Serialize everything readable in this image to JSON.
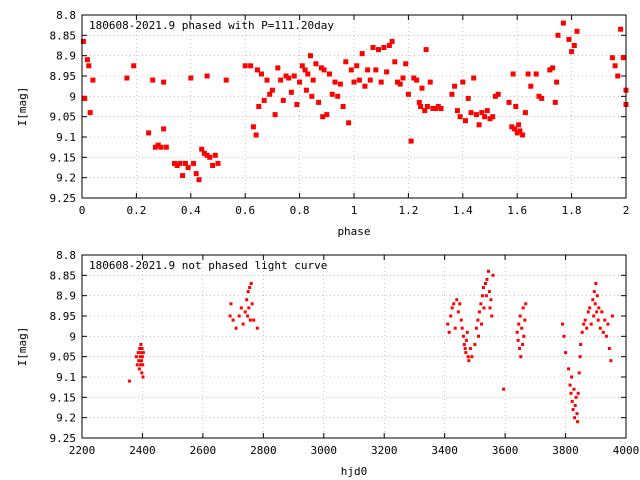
{
  "chart_data": [
    {
      "type": "scatter",
      "title": "180608-2021.9 phased with P=111.20day",
      "xlabel": "phase",
      "ylabel": "I[mag]",
      "xlim": [
        0,
        2
      ],
      "ylim": [
        9.25,
        8.8
      ],
      "y_inverted": true,
      "grid": true,
      "marker_color": "#ff0000",
      "xticks": [
        "0",
        "0.2",
        "0.4",
        "0.6",
        "0.8",
        "1",
        "1.2",
        "1.4",
        "1.6",
        "1.8",
        "2"
      ],
      "yticks": [
        "8.8",
        "8.85",
        "8.9",
        "8.95",
        "9",
        "9.05",
        "9.1",
        "9.15",
        "9.2",
        "9.25"
      ],
      "points": [
        [
          0.005,
          8.865
        ],
        [
          0.01,
          9.005
        ],
        [
          0.02,
          8.91
        ],
        [
          0.025,
          8.925
        ],
        [
          0.03,
          9.04
        ],
        [
          0.04,
          8.96
        ],
        [
          0.165,
          8.955
        ],
        [
          0.19,
          8.925
        ],
        [
          0.245,
          9.09
        ],
        [
          0.26,
          8.96
        ],
        [
          0.27,
          9.125
        ],
        [
          0.28,
          9.12
        ],
        [
          0.29,
          9.125
        ],
        [
          0.3,
          8.965
        ],
        [
          0.3,
          9.08
        ],
        [
          0.31,
          9.125
        ],
        [
          0.34,
          9.165
        ],
        [
          0.35,
          9.17
        ],
        [
          0.36,
          9.165
        ],
        [
          0.37,
          9.195
        ],
        [
          0.38,
          9.165
        ],
        [
          0.39,
          9.175
        ],
        [
          0.4,
          8.955
        ],
        [
          0.41,
          9.165
        ],
        [
          0.42,
          9.19
        ],
        [
          0.43,
          9.205
        ],
        [
          0.44,
          9.13
        ],
        [
          0.45,
          9.14
        ],
        [
          0.46,
          8.95
        ],
        [
          0.46,
          9.145
        ],
        [
          0.47,
          9.15
        ],
        [
          0.48,
          9.17
        ],
        [
          0.49,
          9.145
        ],
        [
          0.5,
          9.165
        ],
        [
          0.53,
          8.96
        ],
        [
          0.6,
          8.925
        ],
        [
          0.62,
          8.925
        ],
        [
          0.63,
          9.075
        ],
        [
          0.64,
          9.095
        ],
        [
          0.645,
          8.935
        ],
        [
          0.65,
          9.025
        ],
        [
          0.66,
          8.945
        ],
        [
          0.67,
          9.01
        ],
        [
          0.68,
          8.96
        ],
        [
          0.69,
          8.995
        ],
        [
          0.7,
          8.985
        ],
        [
          0.71,
          9.045
        ],
        [
          0.72,
          8.93
        ],
        [
          0.73,
          8.96
        ],
        [
          0.74,
          9.01
        ],
        [
          0.75,
          8.95
        ],
        [
          0.76,
          8.955
        ],
        [
          0.77,
          8.99
        ],
        [
          0.78,
          8.95
        ],
        [
          0.79,
          9.02
        ],
        [
          0.8,
          8.965
        ],
        [
          0.81,
          8.925
        ],
        [
          0.82,
          8.935
        ],
        [
          0.825,
          8.985
        ],
        [
          0.83,
          8.945
        ],
        [
          0.84,
          8.9
        ],
        [
          0.845,
          9.0
        ],
        [
          0.85,
          8.96
        ],
        [
          0.86,
          8.92
        ],
        [
          0.87,
          9.015
        ],
        [
          0.88,
          8.93
        ],
        [
          0.885,
          9.05
        ],
        [
          0.89,
          8.935
        ],
        [
          0.9,
          9.045
        ],
        [
          0.91,
          8.945
        ],
        [
          0.92,
          8.995
        ],
        [
          0.93,
          8.965
        ],
        [
          0.94,
          9.0
        ],
        [
          0.95,
          8.97
        ],
        [
          0.96,
          9.025
        ],
        [
          0.97,
          8.915
        ],
        [
          0.98,
          9.065
        ],
        [
          0.99,
          8.935
        ],
        [
          1.0,
          8.965
        ],
        [
          1.01,
          8.925
        ],
        [
          1.02,
          8.96
        ],
        [
          1.03,
          8.895
        ],
        [
          1.04,
          8.975
        ],
        [
          1.05,
          8.935
        ],
        [
          1.06,
          8.96
        ],
        [
          1.07,
          8.88
        ],
        [
          1.08,
          8.935
        ],
        [
          1.09,
          8.885
        ],
        [
          1.1,
          8.965
        ],
        [
          1.11,
          8.88
        ],
        [
          1.12,
          8.94
        ],
        [
          1.13,
          8.875
        ],
        [
          1.14,
          8.865
        ],
        [
          1.15,
          8.915
        ],
        [
          1.16,
          8.965
        ],
        [
          1.17,
          8.97
        ],
        [
          1.18,
          8.955
        ],
        [
          1.19,
          8.92
        ],
        [
          1.2,
          8.995
        ],
        [
          1.21,
          9.11
        ],
        [
          1.22,
          8.955
        ],
        [
          1.23,
          8.96
        ],
        [
          1.24,
          9.015
        ],
        [
          1.245,
          9.025
        ],
        [
          1.25,
          8.98
        ],
        [
          1.26,
          9.035
        ],
        [
          1.265,
          8.885
        ],
        [
          1.27,
          9.025
        ],
        [
          1.28,
          8.965
        ],
        [
          1.29,
          9.03
        ],
        [
          1.3,
          9.03
        ],
        [
          1.31,
          9.025
        ],
        [
          1.32,
          9.03
        ],
        [
          1.36,
          8.995
        ],
        [
          1.37,
          8.975
        ],
        [
          1.38,
          9.035
        ],
        [
          1.39,
          9.05
        ],
        [
          1.4,
          8.965
        ],
        [
          1.41,
          9.06
        ],
        [
          1.42,
          9.005
        ],
        [
          1.43,
          9.04
        ],
        [
          1.44,
          8.955
        ],
        [
          1.45,
          9.045
        ],
        [
          1.46,
          9.07
        ],
        [
          1.47,
          9.04
        ],
        [
          1.48,
          9.05
        ],
        [
          1.49,
          9.035
        ],
        [
          1.5,
          9.055
        ],
        [
          1.51,
          9.05
        ],
        [
          1.52,
          9.0
        ],
        [
          1.53,
          8.995
        ],
        [
          1.57,
          9.015
        ],
        [
          1.58,
          9.075
        ],
        [
          1.585,
          8.945
        ],
        [
          1.59,
          9.08
        ],
        [
          1.595,
          9.025
        ],
        [
          1.6,
          9.09
        ],
        [
          1.605,
          9.07
        ],
        [
          1.61,
          9.085
        ],
        [
          1.62,
          9.095
        ],
        [
          1.63,
          9.04
        ],
        [
          1.64,
          8.945
        ],
        [
          1.65,
          8.975
        ],
        [
          1.67,
          8.945
        ],
        [
          1.68,
          9.0
        ],
        [
          1.69,
          9.005
        ],
        [
          1.72,
          8.935
        ],
        [
          1.73,
          8.93
        ],
        [
          1.74,
          9.015
        ],
        [
          1.745,
          8.965
        ],
        [
          1.75,
          8.85
        ],
        [
          1.77,
          8.82
        ],
        [
          1.79,
          8.86
        ],
        [
          1.8,
          8.89
        ],
        [
          1.81,
          8.875
        ],
        [
          1.82,
          8.84
        ],
        [
          1.95,
          8.905
        ],
        [
          1.96,
          8.925
        ],
        [
          1.97,
          8.95
        ],
        [
          1.98,
          8.835
        ],
        [
          1.99,
          8.905
        ],
        [
          2.0,
          8.985
        ],
        [
          2.0,
          9.02
        ]
      ]
    },
    {
      "type": "scatter",
      "title": "180608-2021.9 not phased light curve",
      "xlabel": "hjd0",
      "ylabel": "I[mag]",
      "xlim": [
        2200,
        4000
      ],
      "ylim": [
        9.25,
        8.8
      ],
      "y_inverted": true,
      "grid": true,
      "marker_color": "#ff0000",
      "xticks": [
        "2200",
        "2400",
        "2600",
        "2800",
        "3000",
        "3200",
        "3400",
        "3600",
        "3800",
        "4000"
      ],
      "yticks": [
        "8.8",
        "8.85",
        "8.9",
        "8.95",
        "9",
        "9.05",
        "9.1",
        "9.15",
        "9.2",
        "9.25"
      ],
      "points": [
        [
          2357,
          9.11
        ],
        [
          2380,
          9.05
        ],
        [
          2383,
          9.07
        ],
        [
          2386,
          9.04
        ],
        [
          2388,
          9.06
        ],
        [
          2390,
          9.08
        ],
        [
          2391,
          9.03
        ],
        [
          2393,
          9.05
        ],
        [
          2394,
          9.07
        ],
        [
          2395,
          9.02
        ],
        [
          2396,
          9.04
        ],
        [
          2397,
          9.06
        ],
        [
          2398,
          9.09
        ],
        [
          2399,
          9.03
        ],
        [
          2400,
          9.05
        ],
        [
          2401,
          9.07
        ],
        [
          2402,
          9.1
        ],
        [
          2403,
          9.04
        ],
        [
          2690,
          8.95
        ],
        [
          2693,
          8.92
        ],
        [
          2700,
          8.96
        ],
        [
          2710,
          8.98
        ],
        [
          2720,
          8.95
        ],
        [
          2727,
          8.93
        ],
        [
          2733,
          8.97
        ],
        [
          2740,
          8.94
        ],
        [
          2745,
          8.91
        ],
        [
          2748,
          8.95
        ],
        [
          2750,
          8.89
        ],
        [
          2752,
          8.93
        ],
        [
          2755,
          8.88
        ],
        [
          2757,
          8.96
        ],
        [
          2760,
          8.87
        ],
        [
          2763,
          8.92
        ],
        [
          2768,
          8.96
        ],
        [
          2780,
          8.98
        ],
        [
          3410,
          8.97
        ],
        [
          3415,
          8.99
        ],
        [
          3420,
          8.95
        ],
        [
          3425,
          8.93
        ],
        [
          3430,
          8.92
        ],
        [
          3435,
          8.98
        ],
        [
          3440,
          8.91
        ],
        [
          3445,
          8.94
        ],
        [
          3450,
          8.92
        ],
        [
          3455,
          8.96
        ],
        [
          3458,
          8.98
        ],
        [
          3462,
          9.0
        ],
        [
          3465,
          9.02
        ],
        [
          3468,
          9.03
        ],
        [
          3470,
          9.04
        ],
        [
          3472,
          9.01
        ],
        [
          3475,
          8.99
        ],
        [
          3478,
          9.05
        ],
        [
          3480,
          9.06
        ],
        [
          3485,
          9.03
        ],
        [
          3490,
          9.05
        ],
        [
          3500,
          9.02
        ],
        [
          3505,
          8.98
        ],
        [
          3510,
          8.96
        ],
        [
          3512,
          9.0
        ],
        [
          3515,
          8.94
        ],
        [
          3520,
          8.92
        ],
        [
          3522,
          8.97
        ],
        [
          3525,
          8.9
        ],
        [
          3528,
          8.88
        ],
        [
          3530,
          8.93
        ],
        [
          3535,
          8.87
        ],
        [
          3538,
          8.9
        ],
        [
          3540,
          8.86
        ],
        [
          3545,
          8.84
        ],
        [
          3548,
          8.89
        ],
        [
          3550,
          8.93
        ],
        [
          3553,
          8.91
        ],
        [
          3556,
          8.95
        ],
        [
          3560,
          8.85
        ],
        [
          3595,
          9.13
        ],
        [
          3640,
          8.99
        ],
        [
          3643,
          9.01
        ],
        [
          3645,
          8.97
        ],
        [
          3648,
          9.03
        ],
        [
          3650,
          8.95
        ],
        [
          3652,
          9.05
        ],
        [
          3655,
          8.98
        ],
        [
          3658,
          9.02
        ],
        [
          3660,
          8.93
        ],
        [
          3662,
          9.0
        ],
        [
          3665,
          8.96
        ],
        [
          3668,
          8.92
        ],
        [
          3790,
          8.97
        ],
        [
          3795,
          9.0
        ],
        [
          3800,
          9.04
        ],
        [
          3810,
          9.08
        ],
        [
          3815,
          9.12
        ],
        [
          3818,
          9.14
        ],
        [
          3820,
          9.1
        ],
        [
          3822,
          9.16
        ],
        [
          3825,
          9.18
        ],
        [
          3828,
          9.13
        ],
        [
          3830,
          9.2
        ],
        [
          3832,
          9.17
        ],
        [
          3835,
          9.15
        ],
        [
          3838,
          9.19
        ],
        [
          3840,
          9.21
        ],
        [
          3842,
          9.14
        ],
        [
          3845,
          9.09
        ],
        [
          3848,
          9.05
        ],
        [
          3850,
          9.02
        ],
        [
          3855,
          8.99
        ],
        [
          3860,
          8.97
        ],
        [
          3865,
          8.96
        ],
        [
          3870,
          8.98
        ],
        [
          3875,
          8.94
        ],
        [
          3880,
          8.93
        ],
        [
          3885,
          8.97
        ],
        [
          3890,
          8.91
        ],
        [
          3893,
          8.95
        ],
        [
          3895,
          8.89
        ],
        [
          3898,
          8.92
        ],
        [
          3900,
          8.87
        ],
        [
          3903,
          8.94
        ],
        [
          3905,
          8.9
        ],
        [
          3908,
          8.96
        ],
        [
          3910,
          8.93
        ],
        [
          3915,
          8.98
        ],
        [
          3920,
          8.94
        ],
        [
          3925,
          8.99
        ],
        [
          3930,
          8.96
        ],
        [
          3935,
          9.0
        ],
        [
          3940,
          8.97
        ],
        [
          3945,
          9.03
        ],
        [
          3950,
          9.06
        ],
        [
          3955,
          8.95
        ]
      ]
    }
  ]
}
